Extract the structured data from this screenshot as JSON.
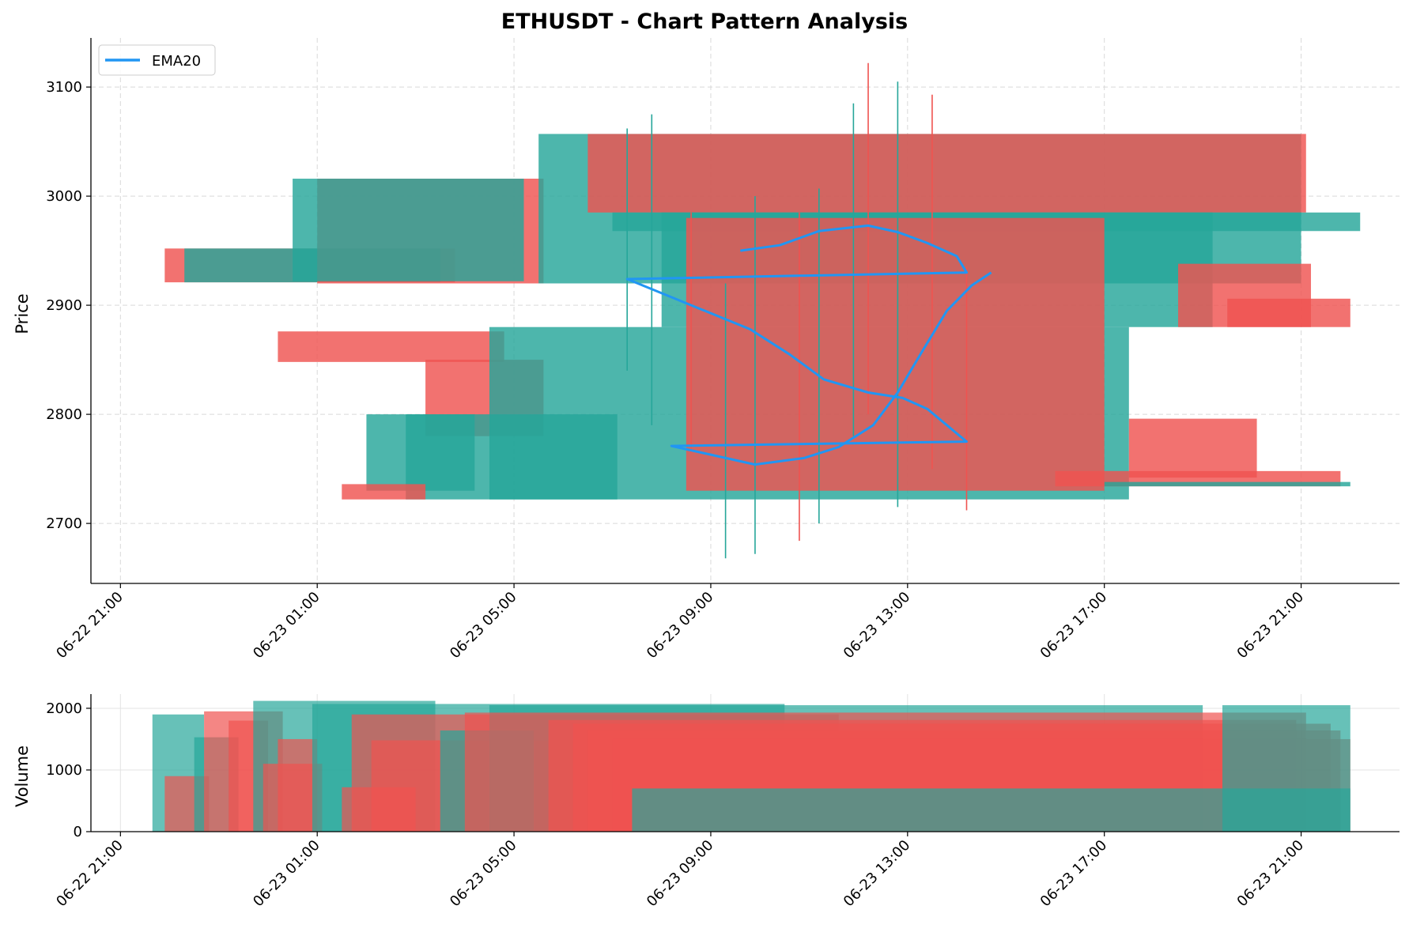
{
  "chart_data": [
    {
      "type": "candlestick",
      "title": "ETHUSDT - Chart Pattern Analysis",
      "xlabel": "",
      "ylabel": "Price",
      "ylim": [
        2645,
        3145
      ],
      "yticks": [
        2700,
        2800,
        2900,
        3000,
        3100
      ],
      "xticks": [
        "06-22 21:00",
        "06-23 01:00",
        "06-23 05:00",
        "06-23 09:00",
        "06-23 13:00",
        "06-23 17:00",
        "06-23 21:00"
      ],
      "xtick_hours": [
        0,
        4,
        8,
        12,
        16,
        20,
        24
      ],
      "xlim_hours": [
        -0.6,
        26.0
      ],
      "grid": true,
      "legend": {
        "position": "top-left",
        "entries": [
          "EMA20"
        ]
      },
      "colors": {
        "up": "#26a69a",
        "down": "#ef5350",
        "ema": "#2196f3"
      },
      "profile_bands": [
        {
          "low": 2921,
          "high": 2952,
          "start": 0.9,
          "end": 6.8,
          "dir": "down"
        },
        {
          "low": 2921,
          "high": 2952,
          "start": 1.3,
          "end": 6.5,
          "dir": "up"
        },
        {
          "low": 2920,
          "high": 3016,
          "start": 4.0,
          "end": 8.6,
          "dir": "down"
        },
        {
          "low": 2922,
          "high": 3016,
          "start": 3.5,
          "end": 8.2,
          "dir": "up"
        },
        {
          "low": 2848,
          "high": 2876,
          "start": 3.2,
          "end": 7.8,
          "dir": "down"
        },
        {
          "low": 2780,
          "high": 2850,
          "start": 6.2,
          "end": 8.6,
          "dir": "down"
        },
        {
          "low": 2722,
          "high": 2800,
          "start": 5.8,
          "end": 10.1,
          "dir": "up"
        },
        {
          "low": 2730,
          "high": 2800,
          "start": 5.0,
          "end": 7.2,
          "dir": "up"
        },
        {
          "low": 2722,
          "high": 2736,
          "start": 4.5,
          "end": 6.2,
          "dir": "down"
        },
        {
          "low": 2722,
          "high": 2880,
          "start": 7.5,
          "end": 20.5,
          "dir": "up"
        },
        {
          "low": 2920,
          "high": 3057,
          "start": 8.5,
          "end": 24.0,
          "dir": "up"
        },
        {
          "low": 2985,
          "high": 3057,
          "start": 9.5,
          "end": 24.1,
          "dir": "down"
        },
        {
          "low": 2968,
          "high": 2985,
          "start": 10.0,
          "end": 25.2,
          "dir": "up"
        },
        {
          "low": 2880,
          "high": 2985,
          "start": 11.0,
          "end": 22.2,
          "dir": "up"
        },
        {
          "low": 2880,
          "high": 2938,
          "start": 21.5,
          "end": 24.2,
          "dir": "down"
        },
        {
          "low": 2880,
          "high": 2906,
          "start": 22.5,
          "end": 25.0,
          "dir": "down"
        },
        {
          "low": 2742,
          "high": 2796,
          "start": 20.5,
          "end": 23.1,
          "dir": "down"
        },
        {
          "low": 2734,
          "high": 2748,
          "start": 19.0,
          "end": 24.8,
          "dir": "down"
        },
        {
          "low": 2734,
          "high": 2738,
          "start": 20.0,
          "end": 25.0,
          "dir": "up"
        },
        {
          "low": 2730,
          "high": 2980,
          "start": 11.5,
          "end": 20.0,
          "dir": "down"
        }
      ],
      "wicks": [
        {
          "t": 10.3,
          "low": 2840,
          "high": 3062,
          "dir": "up"
        },
        {
          "t": 10.8,
          "low": 2790,
          "high": 3075,
          "dir": "up"
        },
        {
          "t": 11.6,
          "low": 2765,
          "high": 2985,
          "dir": "down"
        },
        {
          "t": 12.3,
          "low": 2668,
          "high": 2920,
          "dir": "up"
        },
        {
          "t": 12.9,
          "low": 2672,
          "high": 3000,
          "dir": "up"
        },
        {
          "t": 13.8,
          "low": 2684,
          "high": 2985,
          "dir": "down"
        },
        {
          "t": 14.2,
          "low": 2700,
          "high": 3007,
          "dir": "up"
        },
        {
          "t": 14.9,
          "low": 2780,
          "high": 3085,
          "dir": "up"
        },
        {
          "t": 15.2,
          "low": 2800,
          "high": 3122,
          "dir": "down"
        },
        {
          "t": 15.8,
          "low": 2715,
          "high": 3105,
          "dir": "up"
        },
        {
          "t": 16.5,
          "low": 2750,
          "high": 3093,
          "dir": "down"
        },
        {
          "t": 17.2,
          "low": 2712,
          "high": 2935,
          "dir": "down"
        }
      ],
      "series": [
        {
          "name": "EMA20",
          "points": [
            [
              12.6,
              2950
            ],
            [
              13.4,
              2955
            ],
            [
              14.2,
              2968
            ],
            [
              15.2,
              2973
            ],
            [
              15.8,
              2967
            ],
            [
              16.4,
              2957
            ],
            [
              17.0,
              2945
            ],
            [
              17.2,
              2930
            ],
            [
              10.3,
              2924
            ],
            [
              11.6,
              2900
            ],
            [
              12.8,
              2878
            ],
            [
              13.6,
              2855
            ],
            [
              14.3,
              2832
            ],
            [
              15.2,
              2820
            ],
            [
              15.9,
              2815
            ],
            [
              16.4,
              2805
            ],
            [
              17.2,
              2775
            ],
            [
              11.2,
              2771
            ],
            [
              12.9,
              2754
            ],
            [
              13.9,
              2760
            ],
            [
              14.6,
              2770
            ],
            [
              15.3,
              2790
            ],
            [
              15.8,
              2820
            ],
            [
              16.3,
              2858
            ],
            [
              16.8,
              2895
            ],
            [
              17.3,
              2918
            ],
            [
              17.7,
              2930
            ]
          ]
        }
      ]
    },
    {
      "type": "bar",
      "title": "",
      "xlabel": "",
      "ylabel": "Volume",
      "ylim": [
        0,
        2230
      ],
      "yticks": [
        0,
        1000,
        2000
      ],
      "xticks": [
        "06-22 21:00",
        "06-23 01:00",
        "06-23 05:00",
        "06-23 09:00",
        "06-23 13:00",
        "06-23 17:00",
        "06-23 21:00"
      ],
      "xtick_hours": [
        0,
        4,
        8,
        12,
        16,
        20,
        24
      ],
      "xlim_hours": [
        -0.6,
        26.0
      ],
      "grid": true,
      "bars": [
        {
          "start": 0.65,
          "end": 1.7,
          "value": 1900,
          "dir": "up"
        },
        {
          "start": 0.9,
          "end": 1.8,
          "value": 900,
          "dir": "down"
        },
        {
          "start": 1.5,
          "end": 2.4,
          "value": 1530,
          "dir": "up"
        },
        {
          "start": 1.7,
          "end": 3.3,
          "value": 1950,
          "dir": "down"
        },
        {
          "start": 2.2,
          "end": 3.0,
          "value": 1800,
          "dir": "down"
        },
        {
          "start": 2.7,
          "end": 6.4,
          "value": 2120,
          "dir": "up"
        },
        {
          "start": 2.9,
          "end": 4.1,
          "value": 1100,
          "dir": "down"
        },
        {
          "start": 3.2,
          "end": 4.0,
          "value": 1500,
          "dir": "down"
        },
        {
          "start": 3.9,
          "end": 13.5,
          "value": 2070,
          "dir": "up"
        },
        {
          "start": 4.5,
          "end": 6.0,
          "value": 720,
          "dir": "down"
        },
        {
          "start": 4.7,
          "end": 14.6,
          "value": 1900,
          "dir": "down"
        },
        {
          "start": 5.1,
          "end": 10.0,
          "value": 1480,
          "dir": "down"
        },
        {
          "start": 6.5,
          "end": 8.4,
          "value": 1640,
          "dir": "up"
        },
        {
          "start": 7.5,
          "end": 22.0,
          "value": 2050,
          "dir": "up"
        },
        {
          "start": 7.0,
          "end": 24.1,
          "value": 1930,
          "dir": "down"
        },
        {
          "start": 8.7,
          "end": 23.9,
          "value": 1810,
          "dir": "down"
        },
        {
          "start": 9.2,
          "end": 24.6,
          "value": 1750,
          "dir": "down"
        },
        {
          "start": 9.5,
          "end": 24.8,
          "value": 1640,
          "dir": "down"
        },
        {
          "start": 10.0,
          "end": 25.0,
          "value": 1500,
          "dir": "down"
        },
        {
          "start": 10.4,
          "end": 25.0,
          "value": 700,
          "dir": "up"
        },
        {
          "start": 22.4,
          "end": 25.0,
          "value": 2050,
          "dir": "up"
        }
      ]
    }
  ]
}
